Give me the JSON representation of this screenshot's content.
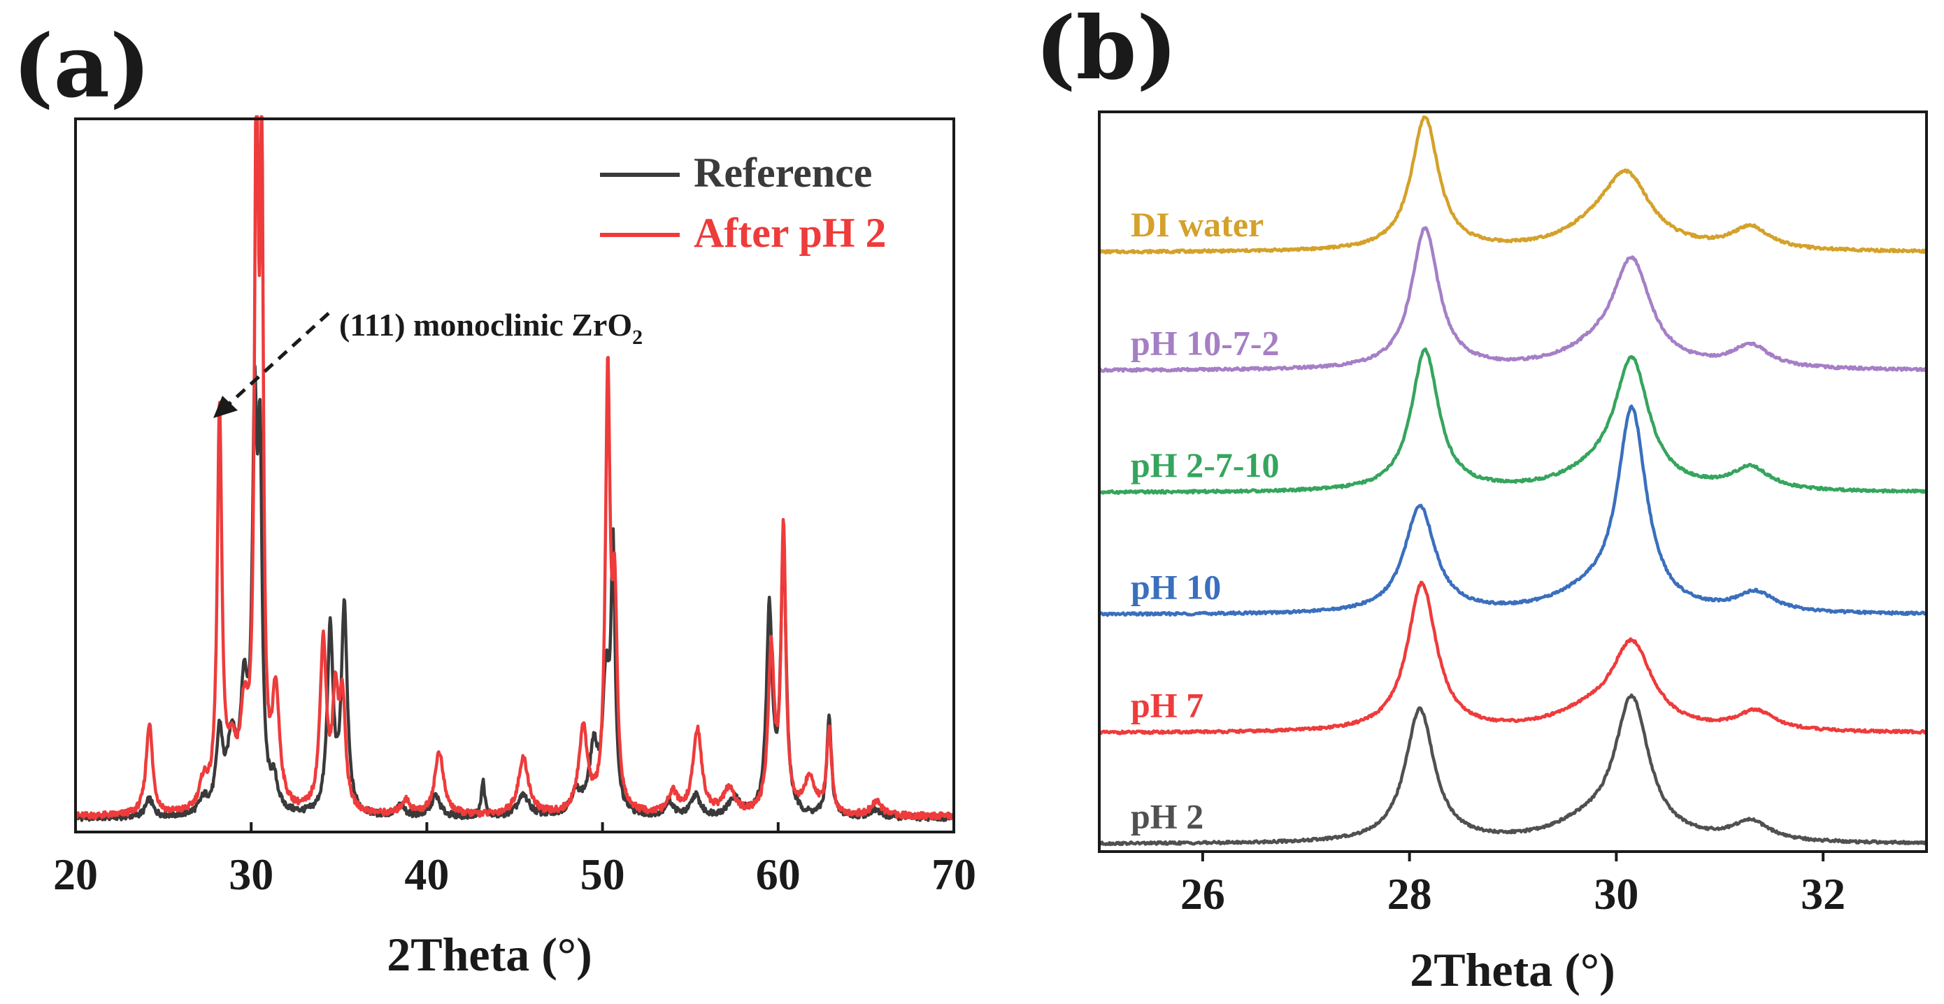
{
  "chart_data": [
    {
      "panel": "(a)",
      "type": "line",
      "xlabel": "2Theta (°)",
      "ylabel": "",
      "xlim": [
        20,
        70
      ],
      "ylim": [
        0,
        100
      ],
      "xticks": [
        "20",
        "30",
        "40",
        "50",
        "60",
        "70"
      ],
      "legend_position": "top-right",
      "annotation": {
        "text": "(111) monoclinic ZrO",
        "subscript": "2",
        "points_to_x": 28.2
      },
      "series": [
        {
          "name": "Reference",
          "color": "#3a3a3a",
          "peaks": [
            [
              24.2,
              2.5,
              0.25
            ],
            [
              27.3,
              2,
              0.3
            ],
            [
              28.2,
              11,
              0.22
            ],
            [
              28.9,
              10,
              0.3
            ],
            [
              29.6,
              16,
              0.25
            ],
            [
              30.2,
              52,
              0.16
            ],
            [
              30.5,
              46,
              0.14
            ],
            [
              31.3,
              4,
              0.25
            ],
            [
              34.5,
              26,
              0.2
            ],
            [
              35.3,
              29,
              0.2
            ],
            [
              38.5,
              1.5,
              0.3
            ],
            [
              40.5,
              3,
              0.3
            ],
            [
              43.2,
              5,
              0.12
            ],
            [
              45.5,
              3,
              0.4
            ],
            [
              48.5,
              3,
              0.4
            ],
            [
              49.5,
              9,
              0.3
            ],
            [
              50.2,
              18,
              0.22
            ],
            [
              50.6,
              36,
              0.14
            ],
            [
              53.8,
              2,
              0.3
            ],
            [
              55.3,
              3,
              0.3
            ],
            [
              57.5,
              2.5,
              0.4
            ],
            [
              59.5,
              29,
              0.2
            ],
            [
              60.3,
              38,
              0.18
            ],
            [
              62.9,
              14,
              0.16
            ],
            [
              65.5,
              1,
              0.4
            ]
          ],
          "baseline": 1.0
        },
        {
          "name": "After pH 2",
          "color": "#ee3b3b",
          "peaks": [
            [
              24.2,
              13,
              0.22
            ],
            [
              27.3,
              4,
              0.3
            ],
            [
              28.2,
              56,
              0.16
            ],
            [
              28.9,
              7,
              0.3
            ],
            [
              29.6,
              12,
              0.3
            ],
            [
              30.3,
              100,
              0.13
            ],
            [
              30.6,
              88,
              0.11
            ],
            [
              31.4,
              16,
              0.25
            ],
            [
              34.1,
              24,
              0.22
            ],
            [
              34.8,
              15,
              0.2
            ],
            [
              35.2,
              15,
              0.2
            ],
            [
              38.8,
              2,
              0.3
            ],
            [
              40.7,
              9,
              0.3
            ],
            [
              45.5,
              8,
              0.35
            ],
            [
              48.9,
              12,
              0.3
            ],
            [
              50.3,
              61,
              0.16
            ],
            [
              50.7,
              28,
              0.16
            ],
            [
              54.0,
              3,
              0.3
            ],
            [
              55.4,
              12,
              0.3
            ],
            [
              57.2,
              3.5,
              0.4
            ],
            [
              59.6,
              23,
              0.2
            ],
            [
              60.3,
              40,
              0.16
            ],
            [
              61.8,
              5,
              0.4
            ],
            [
              62.9,
              12,
              0.16
            ],
            [
              65.6,
              2,
              0.35
            ]
          ],
          "baseline": 1.2
        }
      ]
    },
    {
      "panel": "(b)",
      "type": "line",
      "xlabel": "2Theta (°)",
      "ylabel": "",
      "xlim": [
        25,
        33
      ],
      "ylim": [
        0,
        100
      ],
      "xticks": [
        "26",
        "28",
        "30",
        "32"
      ],
      "series": [
        {
          "name": "DI water",
          "color": "#d4a12a",
          "offset": 81,
          "baseline": 0,
          "peaks": [
            [
              28.15,
              18,
              0.16
            ],
            [
              30.1,
              9.5,
              0.28
            ],
            [
              31.3,
              3,
              0.22
            ],
            [
              29.8,
              2,
              0.4
            ]
          ]
        },
        {
          "name": "pH 10-7-2",
          "color": "#a57fc6",
          "offset": 65,
          "baseline": 0,
          "peaks": [
            [
              28.15,
              19,
              0.16
            ],
            [
              30.15,
              14,
              0.22
            ],
            [
              31.3,
              3,
              0.22
            ],
            [
              29.8,
              2,
              0.4
            ]
          ]
        },
        {
          "name": "pH 2-7-10",
          "color": "#35a55d",
          "offset": 48.5,
          "baseline": 0,
          "peaks": [
            [
              28.15,
              19,
              0.16
            ],
            [
              30.15,
              17,
              0.2
            ],
            [
              31.3,
              3,
              0.22
            ],
            [
              29.8,
              2,
              0.4
            ]
          ]
        },
        {
          "name": "pH 10",
          "color": "#3a6fbd",
          "offset": 32,
          "baseline": 0,
          "peaks": [
            [
              28.1,
              14.5,
              0.18
            ],
            [
              30.15,
              27,
              0.17
            ],
            [
              31.35,
              2.6,
              0.22
            ],
            [
              29.7,
              2,
              0.4
            ]
          ]
        },
        {
          "name": "pH 7",
          "color": "#ee3b3b",
          "offset": 16,
          "baseline": 0,
          "peaks": [
            [
              28.12,
              20,
              0.17
            ],
            [
              30.15,
              11.5,
              0.24
            ],
            [
              31.35,
              2.6,
              0.22
            ],
            [
              29.7,
              2,
              0.4
            ]
          ]
        },
        {
          "name": "pH 2",
          "color": "#505050",
          "offset": 1,
          "baseline": 0,
          "peaks": [
            [
              28.1,
              18,
              0.17
            ],
            [
              30.15,
              19,
              0.2
            ],
            [
              31.3,
              2.6,
              0.22
            ],
            [
              29.7,
              2,
              0.4
            ]
          ]
        }
      ]
    }
  ]
}
